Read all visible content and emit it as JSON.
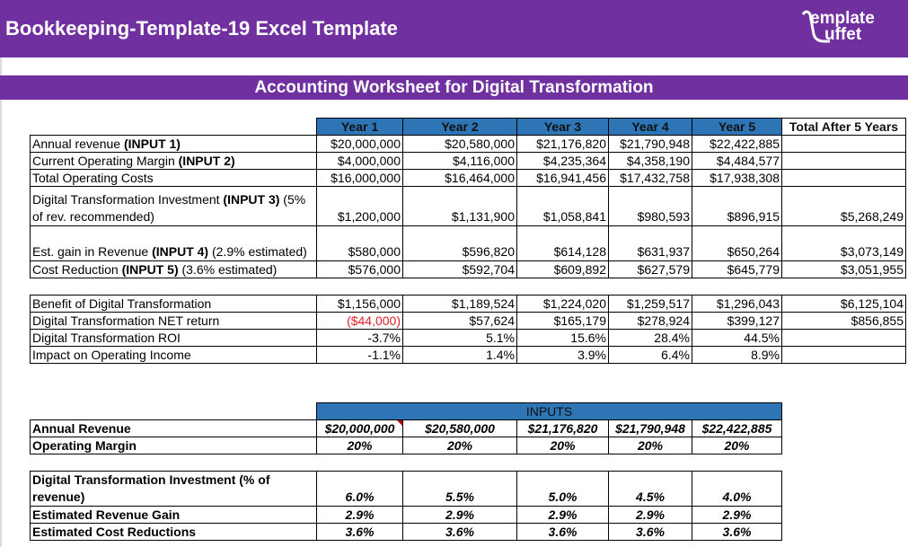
{
  "app_title": "Bookkeeping-Template-19 Excel Template",
  "logo": {
    "line1": "emplate",
    "line2": "uffet"
  },
  "sheet_title": "Accounting Worksheet for Digital Transformation",
  "headers": [
    "Year 1",
    "Year 2",
    "Year 3",
    "Year 4",
    "Year 5",
    "Total After 5 Years"
  ],
  "rows1": [
    {
      "label": "Annual revenue ",
      "bold": "(INPUT 1)",
      "rest": "",
      "values": [
        "$20,000,000",
        "$20,580,000",
        "$21,176,820",
        "$21,790,948",
        "$22,422,885",
        ""
      ]
    },
    {
      "label": "Current Operating Margin ",
      "bold": "(INPUT 2)",
      "rest": "",
      "values": [
        "$4,000,000",
        "$4,116,000",
        "$4,235,364",
        "$4,358,190",
        "$4,484,577",
        ""
      ]
    },
    {
      "label": "Total Operating Costs",
      "bold": "",
      "rest": "",
      "values": [
        "$16,000,000",
        "$16,464,000",
        "$16,941,456",
        "$17,432,758",
        "$17,938,308",
        ""
      ]
    },
    {
      "label": "Digital Transformation Investment ",
      "bold": "(INPUT 3)",
      "rest": " (5% of rev. recommended)",
      "values": [
        "$1,200,000",
        "$1,131,900",
        "$1,058,841",
        "$980,593",
        "$896,915",
        "$5,268,249"
      ]
    },
    {
      "label": "Est. gain in Revenue ",
      "bold": "(INPUT 4)",
      "rest": " (2.9% estimated)",
      "values": [
        "$580,000",
        "$596,820",
        "$614,128",
        "$631,937",
        "$650,264",
        "$3,073,149"
      ]
    },
    {
      "label": "Cost Reduction ",
      "bold": "(INPUT 5)",
      "rest": " (3.6% estimated)",
      "values": [
        "$576,000",
        "$592,704",
        "$609,892",
        "$627,579",
        "$645,779",
        "$3,051,955"
      ]
    }
  ],
  "rows2": [
    {
      "label": "Benefit of Digital Transformation",
      "values": [
        "$1,156,000",
        "$1,189,524",
        "$1,224,020",
        "$1,259,517",
        "$1,296,043",
        "$6,125,104"
      ]
    },
    {
      "label": "Digital Transformation NET return",
      "values": [
        "($44,000)",
        "$57,624",
        "$165,179",
        "$278,924",
        "$399,127",
        "$856,855"
      ]
    },
    {
      "label": "Digital Transformation ROI",
      "values": [
        "-3.7%",
        "5.1%",
        "15.6%",
        "28.4%",
        "44.5%",
        ""
      ]
    },
    {
      "label": "Impact on Operating Income",
      "values": [
        "-1.1%",
        "1.4%",
        "3.9%",
        "6.4%",
        "8.9%",
        ""
      ]
    }
  ],
  "colors": {
    "purple": "#7030a0",
    "header_blue": "#2e75b6",
    "negative": "#e0202a"
  },
  "inputs": {
    "title": "INPUTS",
    "rows1": [
      {
        "label": "Annual Revenue",
        "values": [
          "$20,000,000",
          "$20,580,000",
          "$21,176,820",
          "$21,790,948",
          "$22,422,885"
        ]
      },
      {
        "label": "Operating Margin",
        "values": [
          "20%",
          "20%",
          "20%",
          "20%",
          "20%"
        ]
      }
    ],
    "rows2": [
      {
        "label": "Digital Transformation Investment (% of revenue)",
        "values": [
          "6.0%",
          "5.5%",
          "5.0%",
          "4.5%",
          "4.0%"
        ]
      },
      {
        "label": "Estimated Revenue Gain",
        "values": [
          "2.9%",
          "2.9%",
          "2.9%",
          "2.9%",
          "2.9%"
        ]
      },
      {
        "label": "Estimated Cost Reductions",
        "values": [
          "3.6%",
          "3.6%",
          "3.6%",
          "3.6%",
          "3.6%"
        ]
      }
    ]
  }
}
